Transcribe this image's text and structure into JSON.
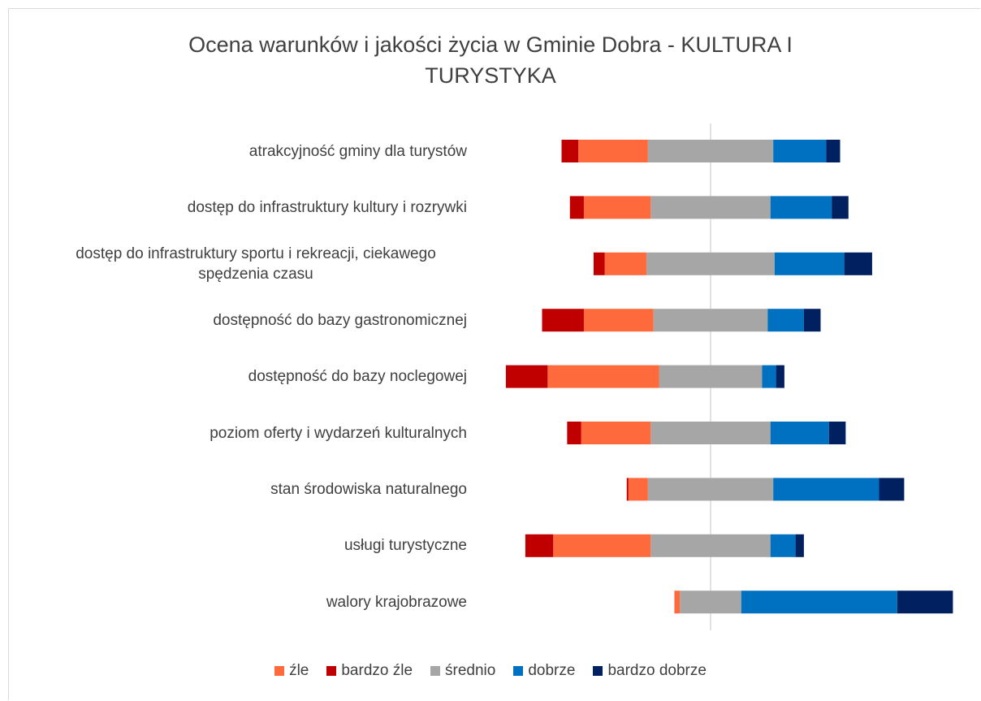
{
  "chart_data": {
    "type": "bar",
    "orientation": "horizontal",
    "stacking": "diverging",
    "title": "Ocena warunków i jakości życia w Gminie Dobra - KULTURA I TURYSTYKA",
    "categories": [
      "atrakcyjność gminy dla turystów",
      "dostęp do infrastruktury kultury i rozrywki",
      "dostęp do infrastruktury sportu i rekreacji, ciekawego spędzenia czasu",
      "dostępność do bazy gastronomicznej",
      "dostępność do bazy noclegowej",
      "poziom oferty i wydarzeń kulturalnych",
      "stan środowiska naturalnego",
      "usługi turystyczne",
      "walory krajobrazowe"
    ],
    "series": [
      {
        "name": "źle",
        "color": "#ff6a3c",
        "values": [
          25,
          24,
          15,
          25,
          40,
          25,
          7,
          35,
          2
        ]
      },
      {
        "name": "bardzo źle",
        "color": "#c00000",
        "values": [
          6,
          5,
          4,
          15,
          15,
          5,
          0.6,
          10,
          0
        ]
      },
      {
        "name": "średnio",
        "color": "#a6a6a6",
        "values": [
          45,
          43,
          46,
          41,
          37,
          43,
          45,
          43,
          22
        ]
      },
      {
        "name": "dobrze",
        "color": "#0070c0",
        "values": [
          19,
          22,
          25,
          13,
          5,
          21,
          38,
          9,
          56
        ]
      },
      {
        "name": "bardzo dobrze",
        "color": "#002060",
        "values": [
          5,
          6,
          10,
          6,
          3,
          6,
          9,
          3,
          20
        ]
      }
    ],
    "legend": "bottom"
  }
}
